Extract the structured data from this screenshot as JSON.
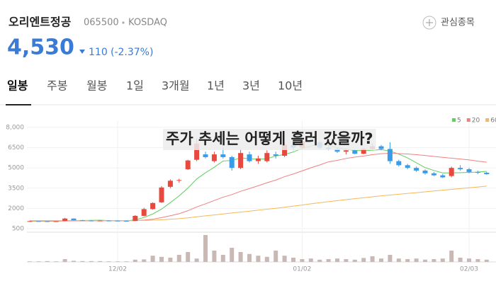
{
  "header": {
    "name": "오리엔트정공",
    "code": "065500",
    "market": "KOSDAQ",
    "watch": "관심종목",
    "price": "4,530",
    "change": "110",
    "change_pct": "(-2.37%)"
  },
  "tabs": [
    "일봉",
    "주봉",
    "월봉",
    "1일",
    "3개월",
    "1년",
    "3년",
    "10년"
  ],
  "chart_data": {
    "type": "candlestick",
    "title": "주가 추세는 어떻게 흘러 갔을까?",
    "categories": [
      null,
      null,
      null,
      null,
      null,
      null,
      null,
      null,
      null,
      null,
      "12/02",
      null,
      null,
      null,
      null,
      null,
      null,
      null,
      null,
      null,
      null,
      null,
      null,
      null,
      null,
      null,
      null,
      null,
      null,
      null,
      null,
      "01/02",
      null,
      null,
      null,
      null,
      null,
      null,
      null,
      null,
      null,
      null,
      null,
      null,
      null,
      null,
      null,
      null,
      null,
      null,
      "02/03",
      null,
      null
    ],
    "open": [
      1050,
      1060,
      1050,
      1040,
      1060,
      1250,
      1120,
      1100,
      1090,
      1100,
      1090,
      1080,
      1070,
      1450,
      1950,
      2450,
      3600,
      4050,
      4900,
      5600,
      6000,
      5500,
      6000,
      5800,
      5000,
      6000,
      5500,
      5500,
      6000,
      5900,
      6700,
      6500,
      7100,
      6900,
      6500,
      6400,
      6200,
      6300,
      6050,
      6400,
      6600,
      6400,
      5500,
      5200,
      5000,
      4800,
      4600,
      4450,
      4400,
      5000,
      4900,
      4700,
      4640
    ],
    "high": [
      1100,
      1080,
      1070,
      1060,
      1300,
      1260,
      1150,
      1130,
      1120,
      1130,
      1120,
      1110,
      1500,
      2050,
      2450,
      3650,
      4150,
      4200,
      5600,
      7200,
      6200,
      6200,
      6500,
      5900,
      6400,
      6200,
      5900,
      6300,
      6200,
      6900,
      7000,
      7200,
      7300,
      7000,
      6700,
      6500,
      6400,
      6400,
      6500,
      6800,
      6700,
      6900,
      5600,
      5300,
      5100,
      4900,
      4700,
      4550,
      5100,
      5200,
      5000,
      4800,
      4700
    ],
    "low": [
      1020,
      1030,
      1030,
      1020,
      1050,
      1100,
      1080,
      1070,
      1060,
      1070,
      1060,
      1050,
      1060,
      1420,
      1900,
      2400,
      3500,
      3900,
      4850,
      5500,
      5700,
      5400,
      5700,
      4800,
      4900,
      5400,
      5300,
      5400,
      5700,
      5800,
      6300,
      6400,
      6900,
      6400,
      6300,
      6100,
      6000,
      6000,
      6000,
      6300,
      6300,
      5300,
      5100,
      4900,
      4700,
      4500,
      4400,
      4250,
      4300,
      4800,
      4600,
      4550,
      4500
    ],
    "close": [
      1060,
      1050,
      1040,
      1050,
      1250,
      1120,
      1100,
      1090,
      1100,
      1090,
      1080,
      1070,
      1450,
      1950,
      2400,
      3550,
      4050,
      4100,
      5550,
      6800,
      5800,
      6000,
      5800,
      5000,
      6100,
      5500,
      5700,
      6100,
      5900,
      6700,
      6500,
      7000,
      6900,
      6500,
      6400,
      6200,
      6300,
      6050,
      6400,
      6600,
      6400,
      5500,
      5200,
      5000,
      4800,
      4600,
      4450,
      4300,
      5000,
      4900,
      4700,
      4640,
      4530
    ],
    "up_color": "#e8493f",
    "down_color": "#3a9ce8",
    "series": [
      {
        "name": "5",
        "color": "#5fcf5f",
        "values": [
          1060,
          1055,
          1050,
          1050,
          1090,
          1105,
          1110,
          1120,
          1130,
          1100,
          1090,
          1085,
          1150,
          1330,
          1590,
          1950,
          2430,
          2930,
          3510,
          4180,
          4640,
          5050,
          5510,
          5550,
          5740,
          5680,
          5640,
          5680,
          5880,
          6000,
          6180,
          6440,
          6620,
          6720,
          6660,
          6500,
          6380,
          6290,
          6270,
          6310,
          6350,
          6250,
          6020,
          5740,
          5380,
          5020,
          4810,
          4630,
          4630,
          4650,
          4670,
          4690,
          4750
        ]
      },
      {
        "name": "20",
        "color": "#f08080",
        "values": [
          1080,
          1075,
          1070,
          1068,
          1075,
          1078,
          1080,
          1082,
          1083,
          1084,
          1085,
          1085,
          1100,
          1140,
          1200,
          1320,
          1460,
          1610,
          1830,
          2110,
          2340,
          2590,
          2830,
          3020,
          3270,
          3470,
          3680,
          3900,
          4100,
          4350,
          4550,
          4780,
          5010,
          5220,
          5450,
          5560,
          5700,
          5800,
          5880,
          5980,
          6050,
          6080,
          6060,
          6030,
          5980,
          5920,
          5850,
          5780,
          5720,
          5660,
          5590,
          5500,
          5420
        ]
      },
      {
        "name": "60",
        "color": "#f5b85a",
        "values": [
          1100,
          1100,
          1100,
          1100,
          1100,
          1100,
          1100,
          1100,
          1100,
          1100,
          1100,
          1100,
          1100,
          1110,
          1130,
          1160,
          1200,
          1240,
          1300,
          1380,
          1450,
          1520,
          1590,
          1660,
          1730,
          1800,
          1870,
          1940,
          2010,
          2090,
          2170,
          2250,
          2340,
          2420,
          2500,
          2580,
          2650,
          2720,
          2790,
          2860,
          2930,
          2990,
          3050,
          3110,
          3170,
          3230,
          3290,
          3350,
          3410,
          3470,
          3530,
          3590,
          3650
        ]
      }
    ],
    "volume": [
      2,
      2,
      3,
      2,
      10,
      4,
      3,
      3,
      3,
      2,
      2,
      2,
      8,
      9,
      22,
      18,
      15,
      25,
      35,
      12,
      95,
      40,
      25,
      50,
      35,
      28,
      22,
      18,
      40,
      22,
      15,
      10,
      12,
      8,
      10,
      12,
      10,
      8,
      14,
      20,
      12,
      25,
      12,
      10,
      12,
      8,
      10,
      12,
      40,
      15,
      12,
      10,
      8
    ],
    "volume_color": "#c9b8b4",
    "vlim": [
      0,
      100
    ],
    "ylim": [
      240,
      8520
    ],
    "yticks": [
      500,
      2000,
      3500,
      5000,
      6500,
      {
        "value": 8000,
        "label": "8,000"
      }
    ],
    "grid": true
  }
}
